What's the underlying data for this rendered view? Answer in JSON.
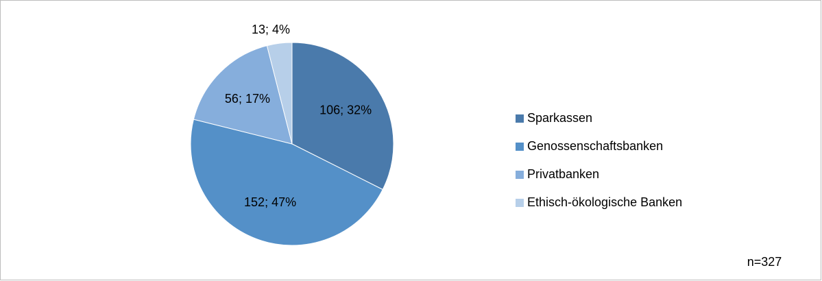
{
  "chart_data": {
    "type": "pie",
    "categories": [
      "Sparkassen",
      "Genossenschaftsbanken",
      "Privatbanken",
      "Ethisch-ökologische Banken"
    ],
    "values": [
      106,
      152,
      56,
      13
    ],
    "value_labels": [
      "106; 32%",
      "152; 47%",
      "56; 17%",
      "13; 4%"
    ],
    "colors": [
      "#4a7aab",
      "#5490c8",
      "#86aedc",
      "#b7cfe9"
    ],
    "legend": "right",
    "annotation": "n=327"
  }
}
